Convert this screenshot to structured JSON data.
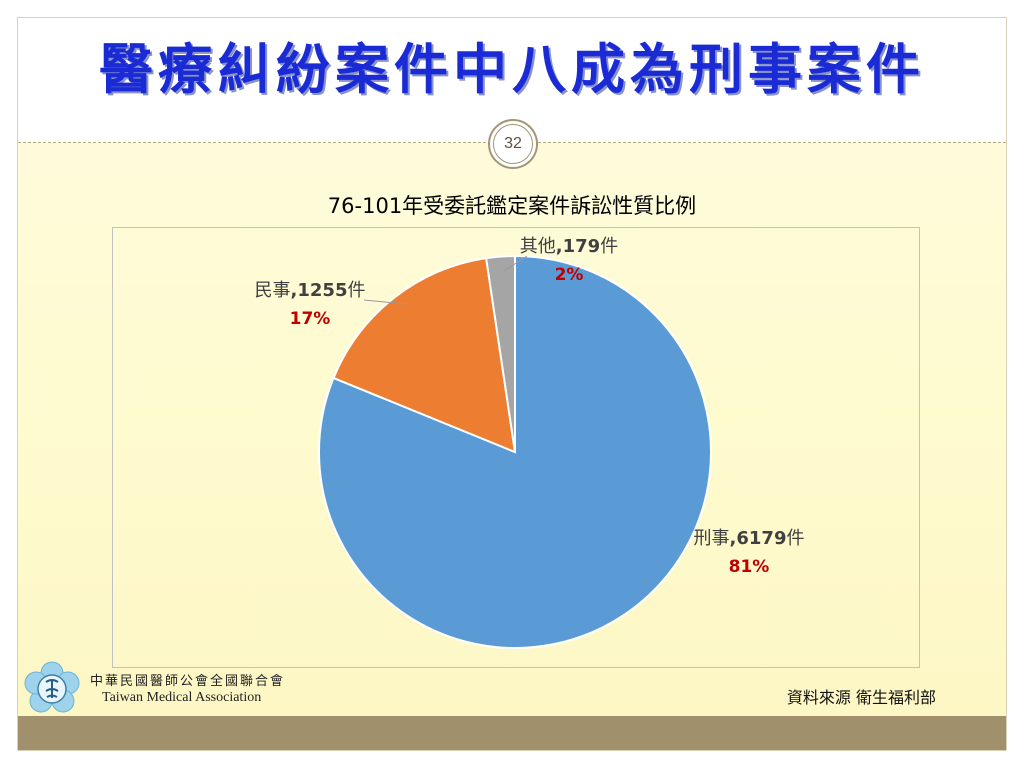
{
  "slide": {
    "title": "醫療糾紛案件中八成為刑事案件",
    "page_number": "32"
  },
  "footer": {
    "org_name_zh": "中華民國醫師公會全國聯合會",
    "org_name_en": "Taiwan Medical Association",
    "source": "資料來源 衛生福利部"
  },
  "colors": {
    "title": "#1a2bd6",
    "slice_criminal": "#5b9bd5",
    "slice_civil": "#ed7d31",
    "slice_other": "#a5a5a5",
    "percent_text": "#c00000",
    "bottom_bar": "#a0916c"
  },
  "chart_data": {
    "type": "pie",
    "title": "76-101年受委託鑑定案件訴訟性質比例",
    "slices": [
      {
        "name": "刑事",
        "count": 6179,
        "unit": "件",
        "percent": "81%",
        "color": "#5b9bd5"
      },
      {
        "name": "民事",
        "count": 1255,
        "unit": "件",
        "percent": "17%",
        "color": "#ed7d31"
      },
      {
        "name": "其他",
        "count": 179,
        "unit": "件",
        "percent": "2%",
        "color": "#a5a5a5"
      }
    ],
    "start_angle": "12 o'clock",
    "direction": "clockwise",
    "legend": "none"
  }
}
